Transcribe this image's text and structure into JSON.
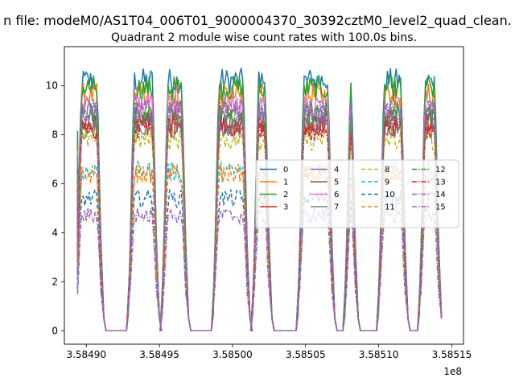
{
  "chart_data": {
    "type": "line",
    "suptitle": "n file: modeM0/AS1T04_006T01_9000004370_30392cztM0_level2_quad_clean.",
    "title": "Quadrant 2 module wise count rates with 100.0s bins.",
    "xlabel": "",
    "ylabel": "",
    "x_offset_label": "1e8",
    "xlim": [
      358488500,
      358515800
    ],
    "ylim": [
      -0.55,
      11.6
    ],
    "x_ticks": [
      358490000,
      358495000,
      358500000,
      358505000,
      358510000,
      358515000
    ],
    "x_tick_labels": [
      "3.58490",
      "3.58495",
      "3.58500",
      "3.58505",
      "3.58510",
      "3.58515"
    ],
    "y_ticks": [
      0,
      2,
      4,
      6,
      8,
      10
    ],
    "y_tick_labels": [
      "0",
      "2",
      "4",
      "6",
      "8",
      "10"
    ],
    "legend_columns": 4,
    "legend_position": "center-right",
    "active_intervals": [
      [
        358489400,
        358491000
      ],
      [
        358493000,
        358494800
      ],
      [
        358495300,
        358496800
      ],
      [
        358498800,
        358501000
      ],
      [
        358501500,
        358502500
      ],
      [
        358504600,
        358506800
      ],
      [
        358507800,
        358508400
      ],
      [
        358510100,
        358511800
      ],
      [
        358512900,
        358514100
      ]
    ],
    "series": [
      {
        "name": "0",
        "color": "#1f77b4",
        "dash": "solid",
        "level": 10.2
      },
      {
        "name": "1",
        "color": "#ff7f0e",
        "dash": "solid",
        "level": 9.6
      },
      {
        "name": "2",
        "color": "#2ca02c",
        "dash": "solid",
        "level": 9.9
      },
      {
        "name": "3",
        "color": "#d62728",
        "dash": "solid",
        "level": 8.4
      },
      {
        "name": "4",
        "color": "#9467bd",
        "dash": "solid",
        "level": 8.9
      },
      {
        "name": "5",
        "color": "#8c564b",
        "dash": "solid",
        "level": 8.6
      },
      {
        "name": "6",
        "color": "#e377c2",
        "dash": "solid",
        "level": 9.2
      },
      {
        "name": "7",
        "color": "#7f7f7f",
        "dash": "solid",
        "level": 8.3
      },
      {
        "name": "8",
        "color": "#bcbd22",
        "dash": "dashed",
        "level": 7.8
      },
      {
        "name": "9",
        "color": "#17becf",
        "dash": "dashed",
        "level": 6.5
      },
      {
        "name": "10",
        "color": "#1f77b4",
        "dash": "dashed",
        "level": 5.4
      },
      {
        "name": "11",
        "color": "#ff7f0e",
        "dash": "dashed",
        "level": 6.4
      },
      {
        "name": "12",
        "color": "#2ca02c",
        "dash": "dashdot",
        "level": 8.9
      },
      {
        "name": "13",
        "color": "#d62728",
        "dash": "dashdot",
        "level": 8.2
      },
      {
        "name": "14",
        "color": "#9467bd",
        "dash": "dashdot",
        "level": 9.0
      },
      {
        "name": "15",
        "color": "#9467bd",
        "dash": "dashdot",
        "level": 4.7
      }
    ]
  }
}
